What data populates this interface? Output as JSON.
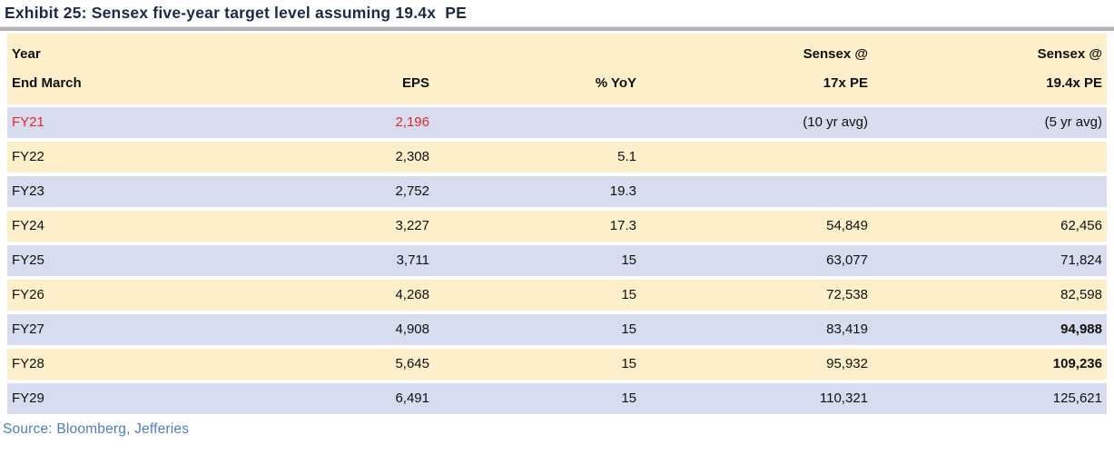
{
  "title": "Exhibit 25: Sensex five-year target level assuming 19.4x  PE",
  "source": "Source: Bloomberg, Jefferies",
  "colors": {
    "title_navy": "#1b2a47",
    "row_blue": "#d7ddee",
    "row_yellow": "#fcefc9",
    "highlight_red": "#e8262b",
    "source_blue": "#4e7cc2",
    "divider_gray": "#b3b3b3"
  },
  "table": {
    "columns": [
      {
        "line1": "Year",
        "line2": "End March"
      },
      {
        "line1": "",
        "line2": "EPS"
      },
      {
        "line1": "",
        "line2": "% YoY"
      },
      {
        "line1": "Sensex @",
        "line2": "17x PE"
      },
      {
        "line1": "Sensex @",
        "line2": "19.4x PE"
      }
    ],
    "rows": [
      {
        "year": "FY21",
        "eps": "2,196",
        "yoy": "",
        "pe17": "(10 yr avg)",
        "pe194": "(5 yr avg)"
      },
      {
        "year": "FY22",
        "eps": "2,308",
        "yoy": "5.1",
        "pe17": "",
        "pe194": ""
      },
      {
        "year": "FY23",
        "eps": "2,752",
        "yoy": "19.3",
        "pe17": "",
        "pe194": ""
      },
      {
        "year": "FY24",
        "eps": "3,227",
        "yoy": "17.3",
        "pe17": "54,849",
        "pe194": "62,456"
      },
      {
        "year": "FY25",
        "eps": "3,711",
        "yoy": "15",
        "pe17": "63,077",
        "pe194": "71,824"
      },
      {
        "year": "FY26",
        "eps": "4,268",
        "yoy": "15",
        "pe17": "72,538",
        "pe194": "82,598"
      },
      {
        "year": "FY27",
        "eps": "4,908",
        "yoy": "15",
        "pe17": "83,419",
        "pe194": "94,988"
      },
      {
        "year": "FY28",
        "eps": "5,645",
        "yoy": "15",
        "pe17": "95,932",
        "pe194": "109,236"
      },
      {
        "year": "FY29",
        "eps": "6,491",
        "yoy": "15",
        "pe17": "110,321",
        "pe194": "125,621"
      }
    ]
  }
}
